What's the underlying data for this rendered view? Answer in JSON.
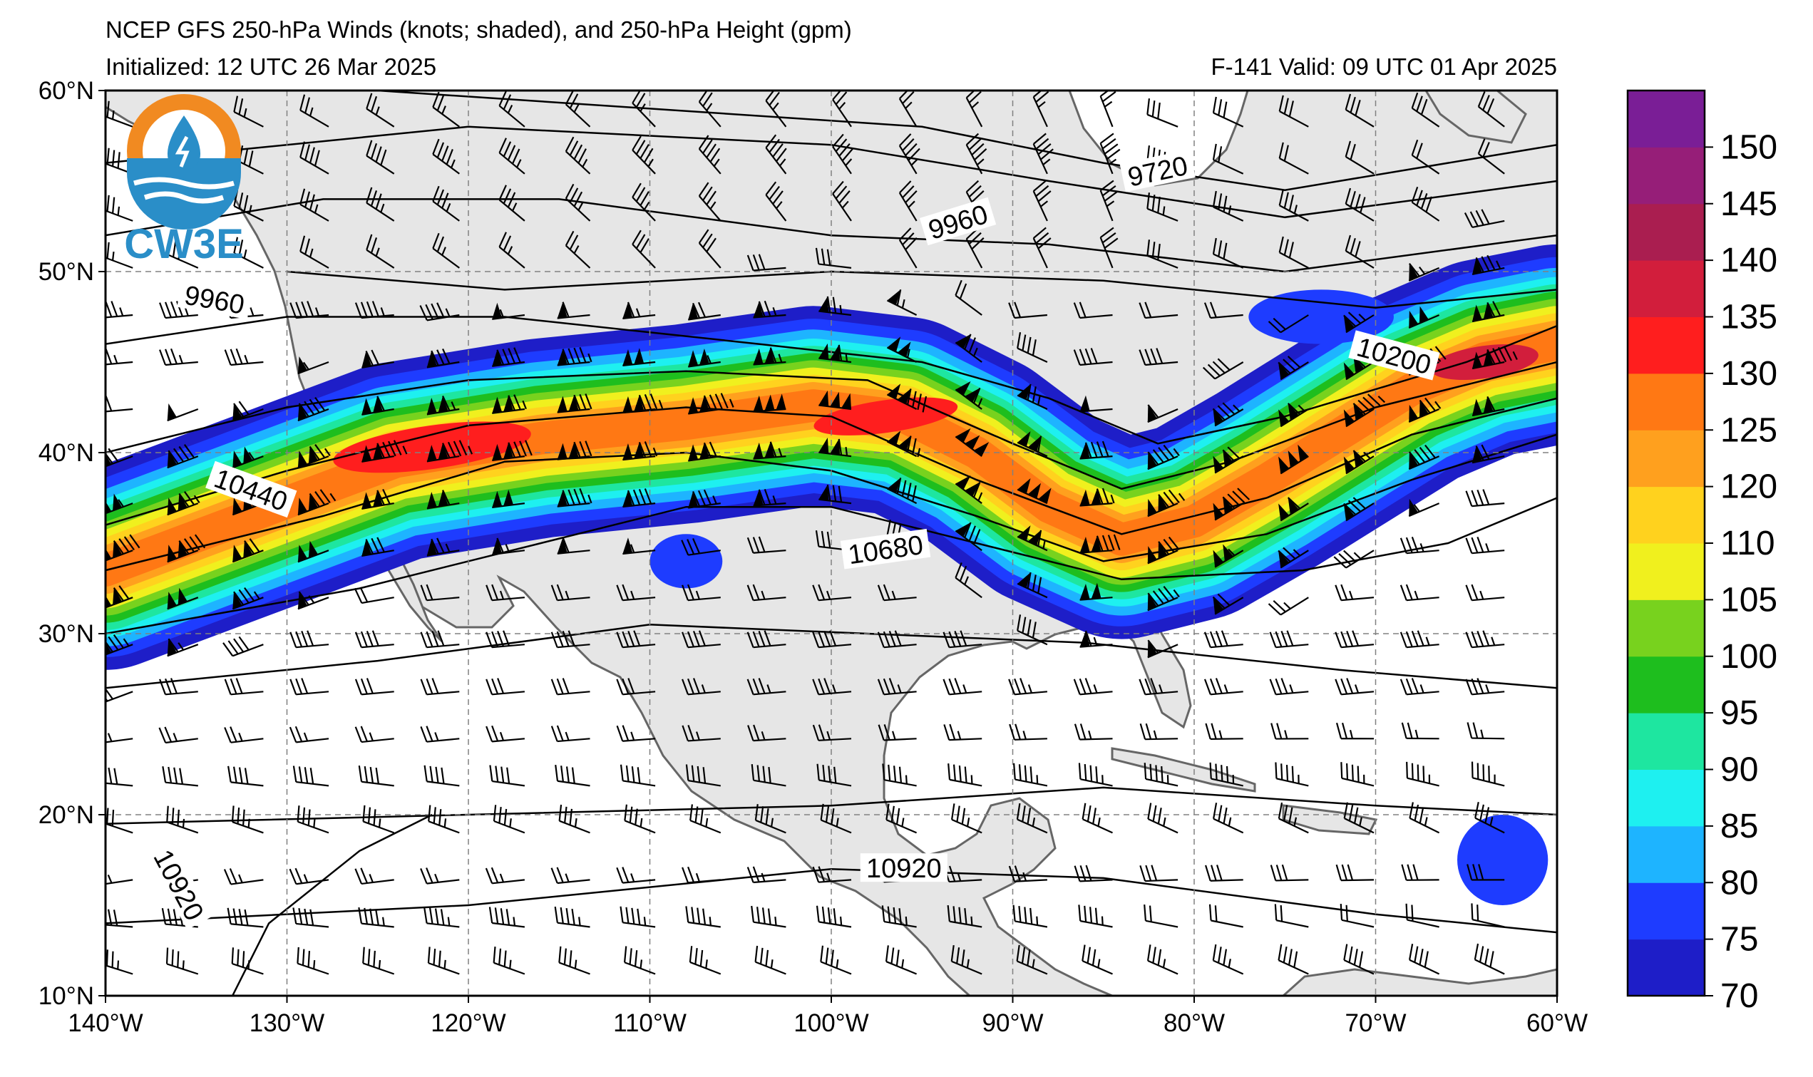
{
  "header": {
    "title": "NCEP GFS 250-hPa Winds (knots; shaded), and 250-hPa Height (gpm)",
    "initialized": "Initialized: 12 UTC 26 Mar 2025",
    "valid": "F-141  Valid: 09 UTC 01 Apr 2025"
  },
  "logo": {
    "text": "CW3E",
    "icon": "cw3e-water-drop-logo-icon"
  },
  "map": {
    "lon_range": [
      -140,
      -60
    ],
    "lat_range": [
      10,
      60
    ],
    "lon_ticks": [
      {
        "lon": -140,
        "label": "140°W"
      },
      {
        "lon": -130,
        "label": "130°W"
      },
      {
        "lon": -120,
        "label": "120°W"
      },
      {
        "lon": -110,
        "label": "110°W"
      },
      {
        "lon": -100,
        "label": "100°W"
      },
      {
        "lon": -90,
        "label": "90°W"
      },
      {
        "lon": -80,
        "label": "80°W"
      },
      {
        "lon": -70,
        "label": "70°W"
      },
      {
        "lon": -60,
        "label": "60°W"
      }
    ],
    "lat_ticks": [
      {
        "lat": 60,
        "label": "60°N"
      },
      {
        "lat": 50,
        "label": "50°N"
      },
      {
        "lat": 40,
        "label": "40°N"
      },
      {
        "lat": 30,
        "label": "30°N"
      },
      {
        "lat": 20,
        "label": "20°N"
      },
      {
        "lat": 10,
        "label": "10°N"
      }
    ],
    "gridlines": true,
    "land_color": "#e6e6e6",
    "coast_color": "#666666"
  },
  "colorbar": {
    "levels": [
      70,
      75,
      80,
      85,
      90,
      95,
      100,
      105,
      110,
      120,
      125,
      130,
      135,
      140,
      145,
      150,
      155
    ],
    "labels": [
      "70",
      "75",
      "80",
      "85",
      "90",
      "95",
      "100",
      "105",
      "110",
      "120",
      "125",
      "130",
      "135",
      "140",
      "145",
      "150"
    ],
    "colors": [
      "#1e1ec8",
      "#1e3cff",
      "#1eb4ff",
      "#1ef0f0",
      "#1ee6a0",
      "#1ebe1e",
      "#78d21e",
      "#f0f01e",
      "#ffd21e",
      "#ffa01e",
      "#ff7814",
      "#ff1e1e",
      "#d21e3c",
      "#aa1e50",
      "#961e78",
      "#7a1e96"
    ]
  },
  "contour_labels": [
    {
      "text": "9720",
      "lon": -82,
      "lat": 55.5,
      "angle": 12
    },
    {
      "text": "9960",
      "lon": -93,
      "lat": 52.7,
      "angle": 17
    },
    {
      "text": "9960",
      "lon": -134,
      "lat": 48.4,
      "angle": -10
    },
    {
      "text": "10200",
      "lon": -69,
      "lat": 45.3,
      "angle": -15
    },
    {
      "text": "10440",
      "lon": -132,
      "lat": 37.9,
      "angle": -20
    },
    {
      "text": "10680",
      "lon": -97,
      "lat": 34.6,
      "angle": 8
    },
    {
      "text": "10920",
      "lon": -96,
      "lat": 17.0,
      "angle": 0
    },
    {
      "text": "10920",
      "lon": -136,
      "lat": 16.1,
      "angle": -62
    }
  ]
}
